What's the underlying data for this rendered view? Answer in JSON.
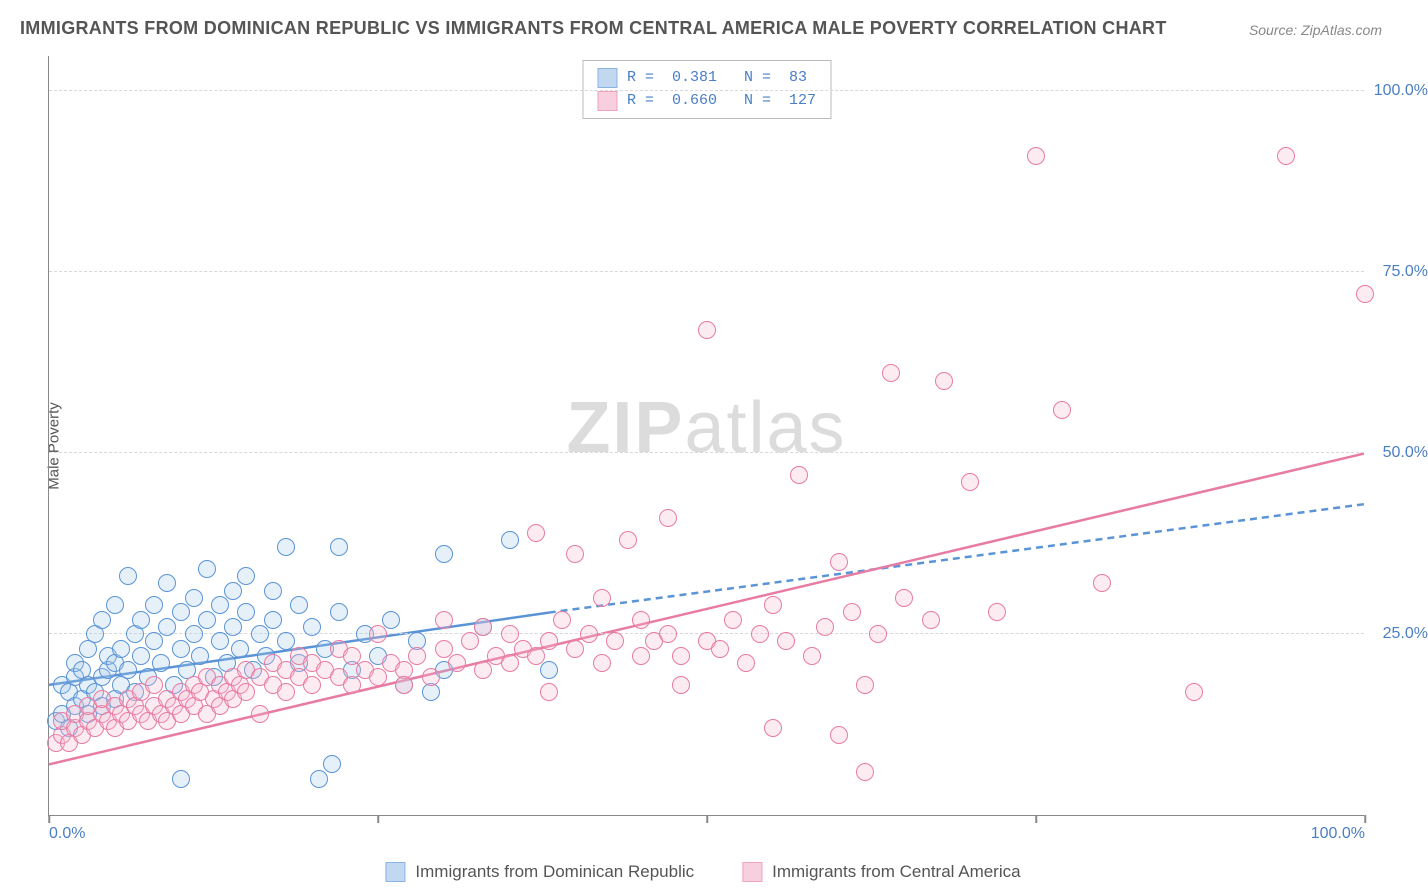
{
  "title": "IMMIGRANTS FROM DOMINICAN REPUBLIC VS IMMIGRANTS FROM CENTRAL AMERICA MALE POVERTY CORRELATION CHART",
  "source": "Source: ZipAtlas.com",
  "watermark_a": "ZIP",
  "watermark_b": "atlas",
  "y_axis_label": "Male Poverty",
  "chart": {
    "type": "scatter",
    "xlim": [
      0,
      100
    ],
    "ylim": [
      0,
      105
    ],
    "background_color": "#ffffff",
    "grid_color": "#d8d8d8",
    "axis_color": "#888888",
    "point_radius": 9,
    "point_fill_opacity": 0.28,
    "point_stroke_width": 1.3,
    "y_ticks": [
      {
        "v": 25,
        "label": "25.0%"
      },
      {
        "v": 50,
        "label": "50.0%"
      },
      {
        "v": 75,
        "label": "75.0%"
      },
      {
        "v": 100,
        "label": "100.0%"
      }
    ],
    "x_ticks_minor": [
      0,
      25,
      50,
      75,
      100
    ],
    "x_tick_labels": [
      {
        "v": 0,
        "label": "0.0%"
      },
      {
        "v": 100,
        "label": "100.0%"
      }
    ],
    "series": [
      {
        "id": "dominican",
        "name": "Immigrants from Dominican Republic",
        "color_stroke": "#5a94d6",
        "color_fill": "#a7c8ea",
        "r": "0.381",
        "n": "83",
        "trend": {
          "solid": {
            "x1": 0,
            "y1": 18,
            "x2": 38,
            "y2": 28
          },
          "dashed": {
            "x1": 38,
            "y1": 28,
            "x2": 100,
            "y2": 43
          },
          "stroke_width": 2.5
        },
        "points": [
          [
            0.5,
            13
          ],
          [
            1,
            14
          ],
          [
            1,
            18
          ],
          [
            1.5,
            12
          ],
          [
            1.5,
            17
          ],
          [
            2,
            15
          ],
          [
            2,
            19
          ],
          [
            2,
            21
          ],
          [
            2.5,
            16
          ],
          [
            2.5,
            20
          ],
          [
            3,
            14
          ],
          [
            3,
            18
          ],
          [
            3,
            23
          ],
          [
            3.5,
            17
          ],
          [
            3.5,
            25
          ],
          [
            4,
            15
          ],
          [
            4,
            19
          ],
          [
            4,
            27
          ],
          [
            4.5,
            20
          ],
          [
            4.5,
            22
          ],
          [
            5,
            16
          ],
          [
            5,
            21
          ],
          [
            5,
            29
          ],
          [
            5.5,
            18
          ],
          [
            5.5,
            23
          ],
          [
            6,
            33
          ],
          [
            6,
            20
          ],
          [
            6.5,
            17
          ],
          [
            6.5,
            25
          ],
          [
            7,
            22
          ],
          [
            7,
            27
          ],
          [
            7.5,
            19
          ],
          [
            8,
            24
          ],
          [
            8,
            29
          ],
          [
            8.5,
            21
          ],
          [
            9,
            32
          ],
          [
            9,
            26
          ],
          [
            9.5,
            18
          ],
          [
            10,
            23
          ],
          [
            10,
            28
          ],
          [
            10,
            5
          ],
          [
            10.5,
            20
          ],
          [
            11,
            25
          ],
          [
            11,
            30
          ],
          [
            11.5,
            22
          ],
          [
            12,
            34
          ],
          [
            12,
            27
          ],
          [
            12.5,
            19
          ],
          [
            13,
            24
          ],
          [
            13,
            29
          ],
          [
            13.5,
            21
          ],
          [
            14,
            26
          ],
          [
            14,
            31
          ],
          [
            14.5,
            23
          ],
          [
            15,
            28
          ],
          [
            15,
            33
          ],
          [
            15.5,
            20
          ],
          [
            16,
            25
          ],
          [
            16.5,
            22
          ],
          [
            17,
            27
          ],
          [
            17,
            31
          ],
          [
            18,
            24
          ],
          [
            18,
            37
          ],
          [
            19,
            21
          ],
          [
            19,
            29
          ],
          [
            20,
            26
          ],
          [
            20.5,
            5
          ],
          [
            21,
            23
          ],
          [
            21.5,
            7
          ],
          [
            22,
            28
          ],
          [
            22,
            37
          ],
          [
            23,
            20
          ],
          [
            24,
            25
          ],
          [
            25,
            22
          ],
          [
            26,
            27
          ],
          [
            27,
            18
          ],
          [
            28,
            24
          ],
          [
            29,
            17
          ],
          [
            30,
            36
          ],
          [
            30,
            20
          ],
          [
            33,
            26
          ],
          [
            35,
            38
          ],
          [
            38,
            20
          ]
        ]
      },
      {
        "id": "central_america",
        "name": "Immigrants from Central America",
        "color_stroke": "#e87ba3",
        "color_fill": "#f5bcd1",
        "r": "0.660",
        "n": "127",
        "trend": {
          "solid": {
            "x1": 0,
            "y1": 7,
            "x2": 100,
            "y2": 50
          },
          "stroke_width": 2.5
        },
        "points": [
          [
            0.5,
            10
          ],
          [
            1,
            11
          ],
          [
            1,
            13
          ],
          [
            1.5,
            10
          ],
          [
            2,
            12
          ],
          [
            2,
            14
          ],
          [
            2.5,
            11
          ],
          [
            3,
            13
          ],
          [
            3,
            15
          ],
          [
            3.5,
            12
          ],
          [
            4,
            14
          ],
          [
            4,
            16
          ],
          [
            4.5,
            13
          ],
          [
            5,
            15
          ],
          [
            5,
            12
          ],
          [
            5.5,
            14
          ],
          [
            6,
            16
          ],
          [
            6,
            13
          ],
          [
            6.5,
            15
          ],
          [
            7,
            14
          ],
          [
            7,
            17
          ],
          [
            7.5,
            13
          ],
          [
            8,
            15
          ],
          [
            8,
            18
          ],
          [
            8.5,
            14
          ],
          [
            9,
            16
          ],
          [
            9,
            13
          ],
          [
            9.5,
            15
          ],
          [
            10,
            17
          ],
          [
            10,
            14
          ],
          [
            10.5,
            16
          ],
          [
            11,
            18
          ],
          [
            11,
            15
          ],
          [
            11.5,
            17
          ],
          [
            12,
            14
          ],
          [
            12,
            19
          ],
          [
            12.5,
            16
          ],
          [
            13,
            18
          ],
          [
            13,
            15
          ],
          [
            13.5,
            17
          ],
          [
            14,
            19
          ],
          [
            14,
            16
          ],
          [
            14.5,
            18
          ],
          [
            15,
            20
          ],
          [
            15,
            17
          ],
          [
            16,
            19
          ],
          [
            16,
            14
          ],
          [
            17,
            18
          ],
          [
            17,
            21
          ],
          [
            18,
            17
          ],
          [
            18,
            20
          ],
          [
            19,
            19
          ],
          [
            19,
            22
          ],
          [
            20,
            18
          ],
          [
            20,
            21
          ],
          [
            21,
            20
          ],
          [
            22,
            19
          ],
          [
            22,
            23
          ],
          [
            23,
            18
          ],
          [
            23,
            22
          ],
          [
            24,
            20
          ],
          [
            25,
            19
          ],
          [
            25,
            25
          ],
          [
            26,
            21
          ],
          [
            27,
            20
          ],
          [
            27,
            18
          ],
          [
            28,
            22
          ],
          [
            29,
            19
          ],
          [
            30,
            23
          ],
          [
            30,
            27
          ],
          [
            31,
            21
          ],
          [
            32,
            24
          ],
          [
            33,
            20
          ],
          [
            33,
            26
          ],
          [
            34,
            22
          ],
          [
            35,
            25
          ],
          [
            35,
            21
          ],
          [
            36,
            23
          ],
          [
            37,
            39
          ],
          [
            37,
            22
          ],
          [
            38,
            24
          ],
          [
            38,
            17
          ],
          [
            39,
            27
          ],
          [
            40,
            23
          ],
          [
            40,
            36
          ],
          [
            41,
            25
          ],
          [
            42,
            21
          ],
          [
            42,
            30
          ],
          [
            43,
            24
          ],
          [
            44,
            38
          ],
          [
            45,
            22
          ],
          [
            45,
            27
          ],
          [
            46,
            24
          ],
          [
            47,
            25
          ],
          [
            47,
            41
          ],
          [
            48,
            22
          ],
          [
            48,
            18
          ],
          [
            50,
            24
          ],
          [
            50,
            67
          ],
          [
            51,
            23
          ],
          [
            52,
            27
          ],
          [
            53,
            21
          ],
          [
            54,
            25
          ],
          [
            55,
            29
          ],
          [
            55,
            12
          ],
          [
            56,
            24
          ],
          [
            57,
            47
          ],
          [
            58,
            22
          ],
          [
            59,
            26
          ],
          [
            60,
            35
          ],
          [
            60,
            11
          ],
          [
            61,
            28
          ],
          [
            62,
            6
          ],
          [
            63,
            25
          ],
          [
            64,
            61
          ],
          [
            65,
            30
          ],
          [
            67,
            27
          ],
          [
            68,
            60
          ],
          [
            70,
            46
          ],
          [
            72,
            28
          ],
          [
            75,
            91
          ],
          [
            77,
            56
          ],
          [
            80,
            32
          ],
          [
            87,
            17
          ],
          [
            94,
            91
          ],
          [
            100,
            72
          ],
          [
            62,
            18
          ]
        ]
      }
    ]
  },
  "legend_label_a": "Immigrants from Dominican Republic",
  "legend_label_b": "Immigrants from Central America"
}
